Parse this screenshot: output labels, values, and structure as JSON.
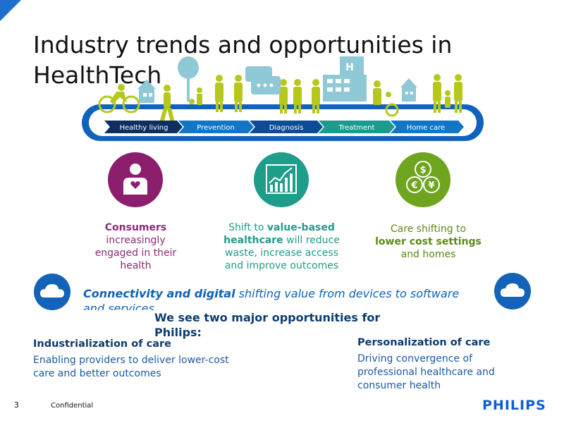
{
  "slide": {
    "title": "Industry trends and opportunities in HealthTech",
    "continuum": {
      "stages": [
        "Healthy living",
        "Prevention",
        "Diagnosis",
        "Treatment",
        "Home care"
      ],
      "hospital_letter": "H"
    },
    "trends": [
      {
        "icon": "consumer-heart-icon",
        "color": "#8c1f6d",
        "highlight": "Consumers",
        "rest": "increasingly engaged in their health"
      },
      {
        "icon": "bar-chart-trend-icon",
        "color": "#1f9c8a",
        "pre": "Shift to ",
        "highlight": "value-based healthcare",
        "rest": " will reduce waste, increase access and improve outcomes"
      },
      {
        "icon": "currency-coins-icon",
        "color": "#6fa51e",
        "pre": "Care shifting to ",
        "highlight": "lower cost settings",
        "rest": " and homes",
        "coins": [
          "$",
          "€",
          "¥"
        ]
      }
    ],
    "connectivity": {
      "bold": "Connectivity and digital",
      "rest": " shifting value from devices to software and services"
    },
    "opportunities_title": "We see two major opportunities for Philips:",
    "opportunities": [
      {
        "title": "Industrialization of care",
        "text": "Enabling providers to deliver lower-cost care and better outcomes"
      },
      {
        "title": "Personalization of care",
        "text": "Driving convergence of professional healthcare and consumer health"
      }
    ],
    "footer": {
      "page": "3",
      "confidential": "Confidential",
      "logo": "PHILIPS"
    }
  },
  "colors": {
    "navy": "#0e3d70",
    "blue": "#1063b5",
    "teal": "#1f9c8a",
    "purple": "#8c1f6d",
    "green": "#6fa51e",
    "lime": "#b6c81c"
  }
}
